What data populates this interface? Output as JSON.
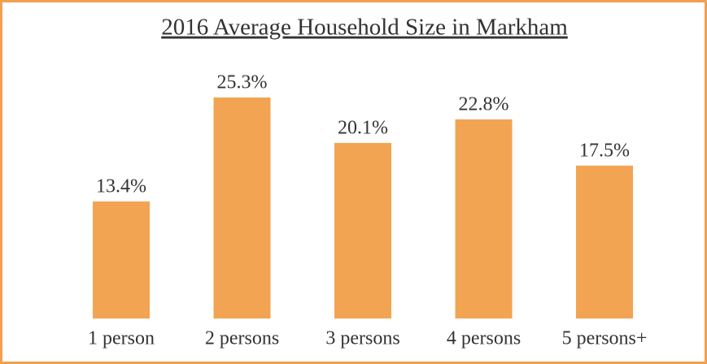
{
  "chart_data": {
    "type": "bar",
    "title": "2016 Average Household Size in Markham",
    "categories": [
      "1 person",
      "2 persons",
      "3 persons",
      "4 persons",
      "5 persons+"
    ],
    "values": [
      13.4,
      25.3,
      20.1,
      22.8,
      17.5
    ],
    "value_labels": [
      "13.4%",
      "25.3%",
      "20.1%",
      "22.8%",
      "17.5%"
    ],
    "color": "#f2a453"
  }
}
